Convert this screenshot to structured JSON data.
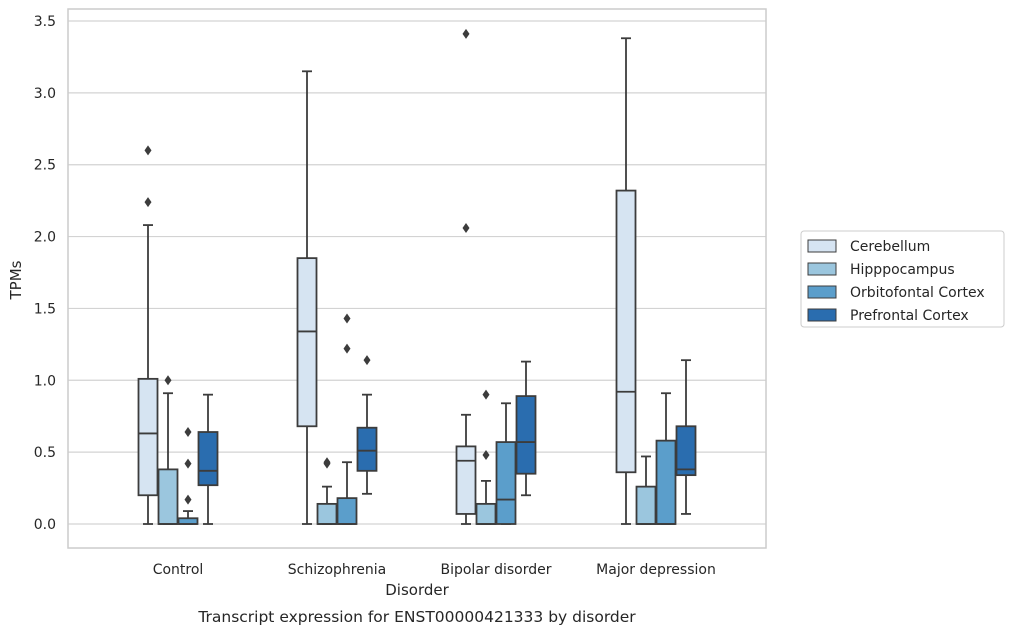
{
  "chart_data": {
    "type": "boxplot",
    "title": "",
    "caption": "Transcript expression for ENST00000421333 by disorder",
    "xlabel": "Disorder",
    "ylabel": "TPMs",
    "ylim": [
      -0.17,
      3.58
    ],
    "yticks": [
      "0.0",
      "0.5",
      "1.0",
      "1.5",
      "2.0",
      "2.5",
      "3.0",
      "3.5"
    ],
    "ytick_values": [
      0,
      0.5,
      1.0,
      1.5,
      2.0,
      2.5,
      3.0,
      3.5
    ],
    "grid": "horizontal",
    "legend_position": "right",
    "categories": [
      "Control",
      "Schizophrenia",
      "Bipolar disorder",
      "Major depression"
    ],
    "series": [
      {
        "name": "Cerebellum",
        "color": "#d6e4f2",
        "boxes": [
          {
            "whisker_low": 0.0,
            "q1": 0.2,
            "median": 0.63,
            "q3": 1.01,
            "whisker_high": 2.08,
            "outliers": [
              2.24,
              2.6
            ]
          },
          {
            "whisker_low": 0.0,
            "q1": 0.68,
            "median": 1.34,
            "q3": 1.85,
            "whisker_high": 3.15,
            "outliers": []
          },
          {
            "whisker_low": 0.0,
            "q1": 0.07,
            "median": 0.44,
            "q3": 0.54,
            "whisker_high": 0.76,
            "outliers": [
              2.06,
              3.41
            ]
          },
          {
            "whisker_low": 0.0,
            "q1": 0.36,
            "median": 0.92,
            "q3": 2.32,
            "whisker_high": 3.38,
            "outliers": []
          }
        ]
      },
      {
        "name": "Hipppocampus",
        "color": "#9bc6de",
        "boxes": [
          {
            "whisker_low": 0.0,
            "q1": 0.0,
            "median": 0.0,
            "q3": 0.38,
            "whisker_high": 0.91,
            "outliers": [
              1.0
            ]
          },
          {
            "whisker_low": 0.0,
            "q1": 0.0,
            "median": 0.0,
            "q3": 0.14,
            "whisker_high": 0.26,
            "outliers": [
              0.42,
              0.43
            ]
          },
          {
            "whisker_low": 0.0,
            "q1": 0.0,
            "median": 0.0,
            "q3": 0.14,
            "whisker_high": 0.3,
            "outliers": [
              0.48,
              0.9
            ]
          },
          {
            "whisker_low": 0.0,
            "q1": 0.0,
            "median": 0.0,
            "q3": 0.26,
            "whisker_high": 0.47,
            "outliers": []
          }
        ]
      },
      {
        "name": "Orbitofontal Cortex",
        "color": "#5b9ecb",
        "boxes": [
          {
            "whisker_low": 0.0,
            "q1": 0.0,
            "median": 0.0,
            "q3": 0.04,
            "whisker_high": 0.09,
            "outliers": [
              0.17,
              0.42,
              0.64
            ]
          },
          {
            "whisker_low": 0.0,
            "q1": 0.0,
            "median": 0.0,
            "q3": 0.18,
            "whisker_high": 0.43,
            "outliers": [
              1.22,
              1.43
            ]
          },
          {
            "whisker_low": 0.0,
            "q1": 0.0,
            "median": 0.17,
            "q3": 0.57,
            "whisker_high": 0.84,
            "outliers": []
          },
          {
            "whisker_low": 0.0,
            "q1": 0.0,
            "median": 0.0,
            "q3": 0.58,
            "whisker_high": 0.91,
            "outliers": []
          }
        ]
      },
      {
        "name": "Prefrontal Cortex",
        "color": "#2a6daf",
        "boxes": [
          {
            "whisker_low": 0.0,
            "q1": 0.27,
            "median": 0.37,
            "q3": 0.64,
            "whisker_high": 0.9,
            "outliers": []
          },
          {
            "whisker_low": 0.21,
            "q1": 0.37,
            "median": 0.51,
            "q3": 0.67,
            "whisker_high": 0.9,
            "outliers": [
              1.14
            ]
          },
          {
            "whisker_low": 0.2,
            "q1": 0.35,
            "median": 0.57,
            "q3": 0.89,
            "whisker_high": 1.13,
            "outliers": []
          },
          {
            "whisker_low": 0.07,
            "q1": 0.34,
            "median": 0.38,
            "q3": 0.68,
            "whisker_high": 1.14,
            "outliers": []
          }
        ]
      }
    ]
  }
}
